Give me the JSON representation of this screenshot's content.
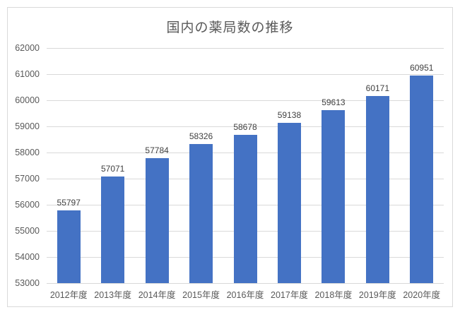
{
  "chart": {
    "bar_color": "#4472C4",
    "grid_color": "#D9D9D9",
    "frame_border_color": "#D9D9D9",
    "title_color": "#595959",
    "axis_label_color": "#595959",
    "data_label_color": "#404040",
    "background_color": "#FFFFFF"
  },
  "chart_data": {
    "type": "bar",
    "title": "国内の薬局数の推移",
    "categories": [
      "2012年度",
      "2013年度",
      "2014年度",
      "2015年度",
      "2016年度",
      "2017年度",
      "2018年度",
      "2019年度",
      "2020年度"
    ],
    "values": [
      55797,
      57071,
      57784,
      58326,
      58678,
      59138,
      59613,
      60171,
      60951
    ],
    "data_labels": [
      "55797",
      "57071",
      "57784",
      "58326",
      "58678",
      "59138",
      "59613",
      "60171",
      "60951"
    ],
    "xlabel": "",
    "ylabel": "",
    "ylim": [
      53000,
      62000
    ],
    "yticks": [
      53000,
      54000,
      55000,
      56000,
      57000,
      58000,
      59000,
      60000,
      61000,
      62000
    ],
    "grid": true,
    "legend": false,
    "series_count": 1
  }
}
